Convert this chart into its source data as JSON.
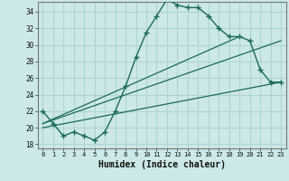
{
  "title": "",
  "xlabel": "Humidex (Indice chaleur)",
  "ylabel": "",
  "bg_color": "#cce8e8",
  "grid_color": "#b0d4d4",
  "line_color": "#1a6b5a",
  "xlim": [
    -0.5,
    23.5
  ],
  "ylim": [
    17.5,
    35.2
  ],
  "xticks": [
    0,
    1,
    2,
    3,
    4,
    5,
    6,
    7,
    8,
    9,
    10,
    11,
    12,
    13,
    14,
    15,
    16,
    17,
    18,
    19,
    20,
    21,
    22,
    23
  ],
  "yticks": [
    18,
    20,
    22,
    24,
    26,
    28,
    30,
    32,
    34
  ],
  "curve1_x": [
    0,
    1,
    2,
    3,
    4,
    5,
    6,
    7,
    8,
    9,
    10,
    11,
    12,
    13,
    14,
    15,
    16,
    17,
    18,
    19,
    20,
    21,
    22,
    23
  ],
  "curve1_y": [
    22.0,
    20.5,
    19.0,
    19.5,
    19.0,
    18.5,
    19.5,
    22.0,
    25.0,
    28.5,
    31.5,
    33.5,
    35.5,
    34.8,
    34.5,
    34.5,
    33.5,
    32.0,
    31.0,
    31.0,
    30.5,
    27.0,
    25.5,
    25.5
  ],
  "line2_x": [
    0,
    23
  ],
  "line2_y": [
    20.0,
    25.5
  ],
  "line3_x": [
    0,
    23
  ],
  "line3_y": [
    20.5,
    30.5
  ],
  "line4_x": [
    0,
    19
  ],
  "line4_y": [
    20.5,
    31.0
  ]
}
